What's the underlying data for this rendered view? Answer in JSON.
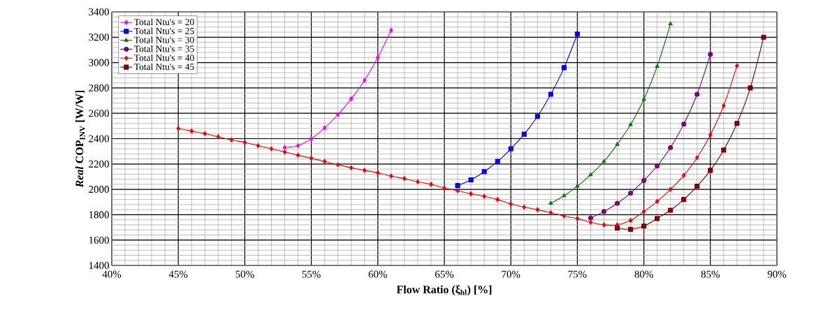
{
  "chart_data": {
    "type": "line",
    "xlabel": "Flow Ratio (ξ$_{hl}$) [%]",
    "ylabel": "*Real*  COP$_{INV}$ [W/W]",
    "xlim": [
      40,
      90
    ],
    "ylim": [
      1400,
      3400
    ],
    "xticks": [
      {
        "value": 40,
        "label": "40%"
      },
      {
        "value": 45,
        "label": "45%"
      },
      {
        "value": 50,
        "label": "50%"
      },
      {
        "value": 55,
        "label": "55%"
      },
      {
        "value": 60,
        "label": "60%"
      },
      {
        "value": 65,
        "label": "65%"
      },
      {
        "value": 70,
        "label": "70%"
      },
      {
        "value": 75,
        "label": "75%"
      },
      {
        "value": 80,
        "label": "80%"
      },
      {
        "value": 85,
        "label": "85%"
      },
      {
        "value": 90,
        "label": "90%"
      }
    ],
    "yticks": [
      1400,
      1600,
      1800,
      2000,
      2200,
      2400,
      2600,
      2800,
      3000,
      3200,
      3400
    ],
    "grid": true,
    "legend": "top left",
    "line_style": "solid",
    "series": [
      {
        "name": "Total Ntu's = 20",
        "color": "#ff00ff",
        "marker": "diamond",
        "x": [
          53,
          54,
          55,
          56,
          57,
          58,
          59,
          60,
          61
        ],
        "values": [
          2330,
          2345,
          2400,
          2485,
          2590,
          2715,
          2860,
          3040,
          3255
        ]
      },
      {
        "name": "Total Ntu's = 25",
        "color": "#0000ff",
        "marker": "square",
        "x": [
          66,
          67,
          68,
          69,
          70,
          71,
          72,
          73,
          74,
          75
        ],
        "values": [
          2030,
          2075,
          2140,
          2220,
          2320,
          2435,
          2575,
          2750,
          2960,
          3225
        ]
      },
      {
        "name": "Total Ntu's = 30",
        "color": "#008000",
        "marker": "triangle",
        "x": [
          73,
          74,
          75,
          76,
          77,
          78,
          79,
          80,
          81,
          82
        ],
        "values": [
          1890,
          1950,
          2025,
          2115,
          2220,
          2355,
          2510,
          2710,
          2970,
          3305
        ]
      },
      {
        "name": "Total Ntu's = 35",
        "color": "#800080",
        "marker": "circle",
        "x": [
          76,
          77,
          78,
          79,
          80,
          81,
          82,
          83,
          84,
          85
        ],
        "values": [
          1775,
          1825,
          1890,
          1970,
          2070,
          2185,
          2330,
          2515,
          2750,
          3065
        ]
      },
      {
        "name": "Total Ntu's = 40",
        "color": "#ff0000",
        "marker": "diamond",
        "x": [
          45,
          46,
          47,
          48,
          49,
          50,
          51,
          52,
          53,
          54,
          55,
          56,
          57,
          58,
          59,
          60,
          61,
          62,
          63,
          64,
          65,
          66,
          67,
          68,
          69,
          70,
          71,
          72,
          73,
          74,
          75,
          76,
          77,
          78,
          79,
          80,
          81,
          82,
          83,
          84,
          85,
          86,
          87
        ],
        "values": [
          2480,
          2460,
          2440,
          2415,
          2390,
          2370,
          2345,
          2320,
          2295,
          2270,
          2245,
          2220,
          2195,
          2170,
          2150,
          2130,
          2105,
          2085,
          2060,
          2040,
          2010,
          1990,
          1965,
          1945,
          1920,
          1885,
          1860,
          1840,
          1815,
          1790,
          1770,
          1740,
          1720,
          1720,
          1755,
          1825,
          1905,
          2000,
          2110,
          2250,
          2430,
          2660,
          2975
        ]
      },
      {
        "name": "Total Ntu's = 45",
        "color": "#800000",
        "marker": "square",
        "x": [
          78,
          79,
          80,
          81,
          82,
          83,
          84,
          85,
          86,
          87,
          88,
          89
        ],
        "values": [
          1695,
          1685,
          1710,
          1770,
          1835,
          1920,
          2025,
          2150,
          2310,
          2520,
          2800,
          3200
        ]
      }
    ]
  }
}
